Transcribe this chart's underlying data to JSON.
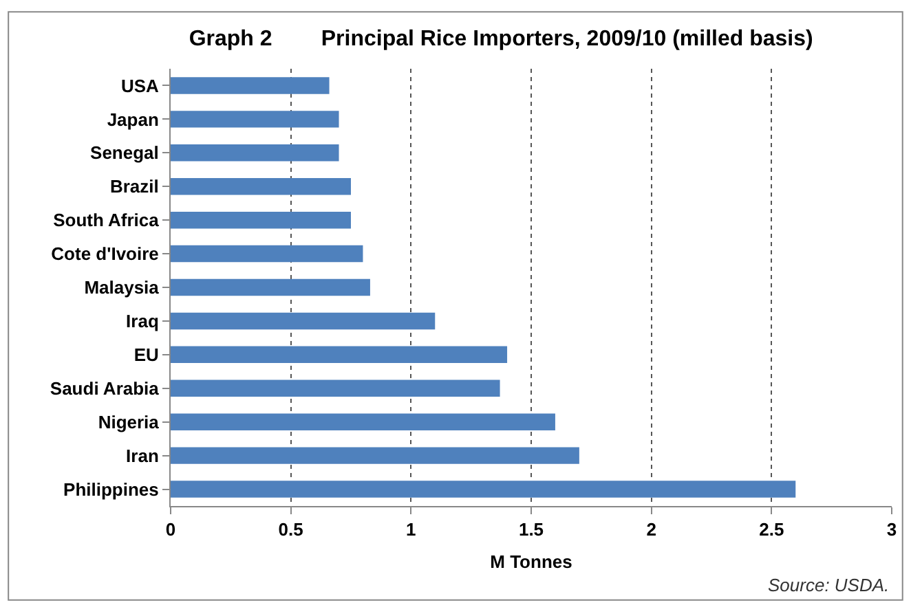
{
  "chart_data": {
    "type": "bar",
    "orientation": "horizontal",
    "title": "Graph 2        Principal Rice Importers, 2009/10 (milled basis)",
    "xlabel": "M Tonnes",
    "categories": [
      "USA",
      "Japan",
      "Senegal",
      "Brazil",
      "South Africa",
      "Cote d'Ivoire",
      "Malaysia",
      "Iraq",
      "EU",
      "Saudi Arabia",
      "Nigeria",
      "Iran",
      "Philippines"
    ],
    "values": [
      0.66,
      0.7,
      0.7,
      0.75,
      0.75,
      0.8,
      0.83,
      1.1,
      1.4,
      1.37,
      1.6,
      1.7,
      2.6
    ],
    "color": "#4f81bd",
    "xlim": [
      0,
      3
    ],
    "xticks": [
      0,
      0.5,
      1,
      1.5,
      2,
      2.5,
      3
    ],
    "grid": "x",
    "annotations": [
      "Source: USDA."
    ]
  }
}
